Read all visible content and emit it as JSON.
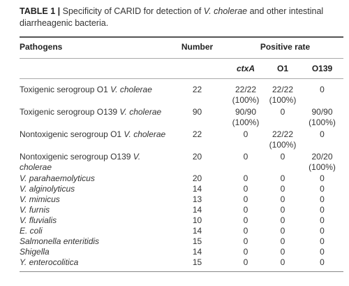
{
  "caption": {
    "label": "TABLE 1 |",
    "text": [
      "Specificity of CARID for detection of ",
      "V. cholerae",
      " and other intestinal diarrheagenic bacteria."
    ]
  },
  "table": {
    "headers": {
      "pathogens": "Pathogens",
      "number": "Number",
      "positive_rate": "Positive rate",
      "sub": [
        "ctxA",
        "O1",
        "O139"
      ]
    },
    "rows": [
      {
        "pathogen": {
          "plain": "Toxigenic serogroup O1 ",
          "italic": "V. cholerae"
        },
        "number": 22,
        "ctxA": "22/22 (100%)",
        "O1": "22/22 (100%)",
        "O139": "0"
      },
      {
        "pathogen": {
          "plain": "Toxigenic serogroup O139 ",
          "italic": "V. cholerae"
        },
        "number": 90,
        "ctxA": "90/90 (100%)",
        "O1": "0",
        "O139": "90/90 (100%)"
      },
      {
        "pathogen": {
          "plain": "Nontoxigenic serogroup O1 ",
          "italic": "V. cholerae"
        },
        "number": 22,
        "ctxA": "0",
        "O1": "22/22 (100%)",
        "O139": "0"
      },
      {
        "pathogen": {
          "plain": "Nontoxigenic serogroup O139 ",
          "italic": "V. cholerae"
        },
        "number": 20,
        "ctxA": "0",
        "O1": "0",
        "O139": "20/20 (100%)"
      },
      {
        "pathogen": {
          "italic": "V. parahaemolyticus"
        },
        "number": 20,
        "ctxA": "0",
        "O1": "0",
        "O139": "0"
      },
      {
        "pathogen": {
          "italic": "V. alginolyticus"
        },
        "number": 14,
        "ctxA": "0",
        "O1": "0",
        "O139": "0"
      },
      {
        "pathogen": {
          "italic": "V. mimicus"
        },
        "number": 13,
        "ctxA": "0",
        "O1": "0",
        "O139": "0"
      },
      {
        "pathogen": {
          "italic": "V. furnis"
        },
        "number": 14,
        "ctxA": "0",
        "O1": "0",
        "O139": "0"
      },
      {
        "pathogen": {
          "italic": "V. fluvialis"
        },
        "number": 10,
        "ctxA": "0",
        "O1": "0",
        "O139": "0"
      },
      {
        "pathogen": {
          "italic": "E. coli"
        },
        "number": 14,
        "ctxA": "0",
        "O1": "0",
        "O139": "0"
      },
      {
        "pathogen": {
          "italic": "Salmonella enteritidis"
        },
        "number": 15,
        "ctxA": "0",
        "O1": "0",
        "O139": "0"
      },
      {
        "pathogen": {
          "italic": "Shigella"
        },
        "number": 14,
        "ctxA": "0",
        "O1": "0",
        "O139": "0"
      },
      {
        "pathogen": {
          "italic": "Y. enterocolitica"
        },
        "number": 15,
        "ctxA": "0",
        "O1": "0",
        "O139": "0"
      }
    ]
  }
}
